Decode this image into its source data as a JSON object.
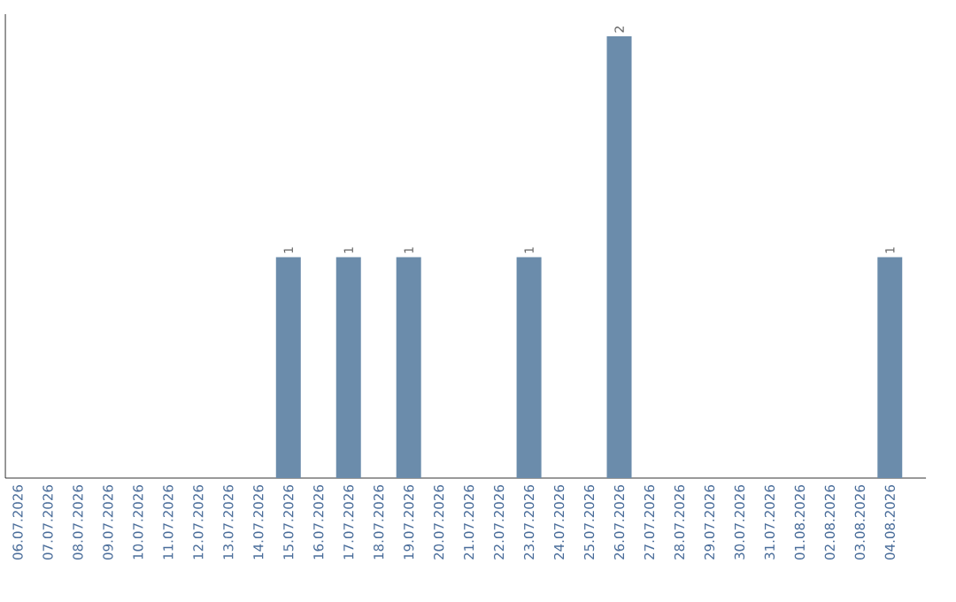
{
  "chart_data": {
    "type": "bar",
    "categories": [
      "06.07.2026",
      "07.07.2026",
      "08.07.2026",
      "09.07.2026",
      "10.07.2026",
      "11.07.2026",
      "12.07.2026",
      "13.07.2026",
      "14.07.2026",
      "15.07.2026",
      "16.07.2026",
      "17.07.2026",
      "18.07.2026",
      "19.07.2026",
      "20.07.2026",
      "21.07.2026",
      "22.07.2026",
      "23.07.2026",
      "24.07.2026",
      "25.07.2026",
      "26.07.2026",
      "27.07.2026",
      "28.07.2026",
      "29.07.2026",
      "30.07.2026",
      "31.07.2026",
      "01.08.2026",
      "02.08.2026",
      "03.08.2026",
      "04.08.2026"
    ],
    "values": [
      0,
      0,
      0,
      0,
      0,
      0,
      0,
      0,
      0,
      1,
      0,
      1,
      0,
      1,
      0,
      0,
      0,
      1,
      0,
      0,
      2,
      0,
      0,
      0,
      0,
      0,
      0,
      0,
      0,
      1
    ],
    "value_labels": [
      null,
      null,
      null,
      null,
      null,
      null,
      null,
      null,
      null,
      "1",
      null,
      "1",
      null,
      "1",
      null,
      null,
      null,
      "1",
      null,
      null,
      "2",
      null,
      null,
      null,
      null,
      null,
      null,
      null,
      null,
      "1"
    ],
    "color": "#6b8cab",
    "tick_labels": "x"
  }
}
